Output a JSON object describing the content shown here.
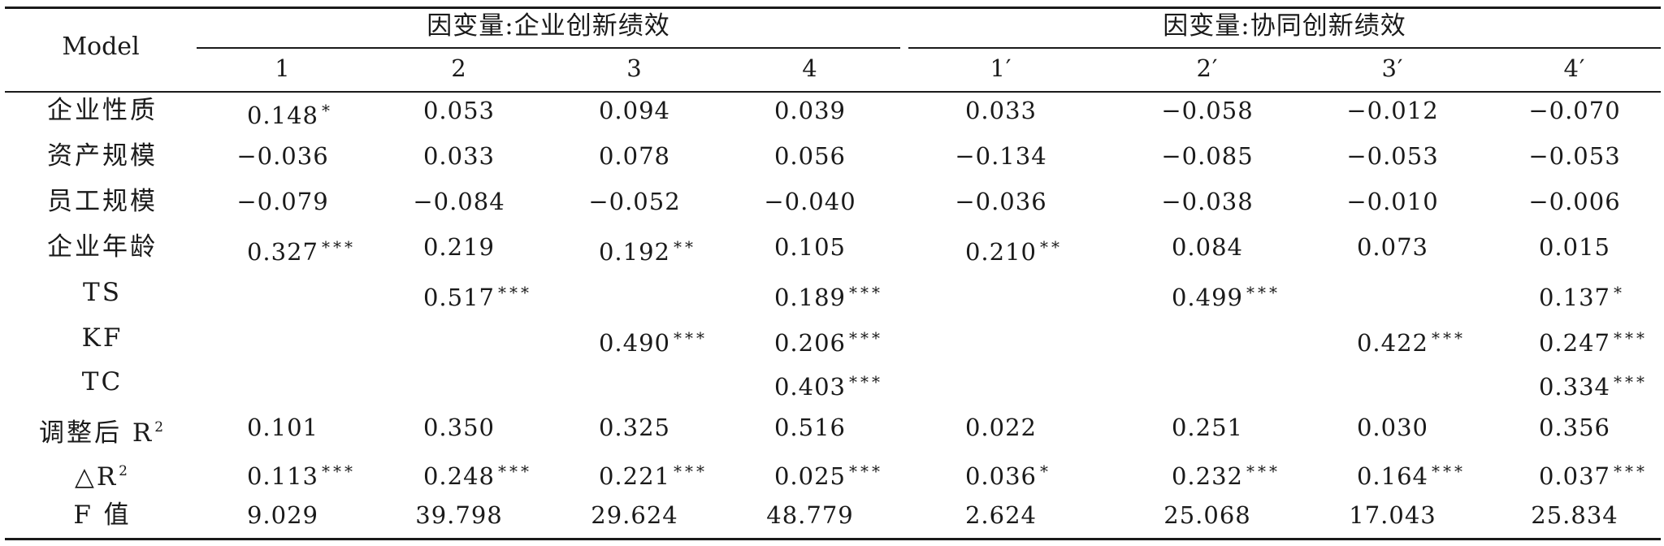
{
  "table": {
    "model_label": "Model",
    "group_headers": [
      "因变量:企业创新绩效",
      "因变量:协同创新绩效"
    ],
    "column_labels": [
      "1",
      "2",
      "3",
      "4",
      "1′",
      "2′",
      "3′",
      "4′"
    ],
    "rows": [
      {
        "label": "企业性质",
        "cells": [
          {
            "v": "0.148",
            "s": "*"
          },
          {
            "v": "0.053",
            "s": ""
          },
          {
            "v": "0.094",
            "s": ""
          },
          {
            "v": "0.039",
            "s": ""
          },
          {
            "v": "0.033",
            "s": ""
          },
          {
            "v": "−0.058",
            "s": ""
          },
          {
            "v": "−0.012",
            "s": ""
          },
          {
            "v": "−0.070",
            "s": ""
          }
        ]
      },
      {
        "label": "资产规模",
        "cells": [
          {
            "v": "−0.036",
            "s": ""
          },
          {
            "v": "0.033",
            "s": ""
          },
          {
            "v": "0.078",
            "s": ""
          },
          {
            "v": "0.056",
            "s": ""
          },
          {
            "v": "−0.134",
            "s": ""
          },
          {
            "v": "−0.085",
            "s": ""
          },
          {
            "v": "−0.053",
            "s": ""
          },
          {
            "v": "−0.053",
            "s": ""
          }
        ]
      },
      {
        "label": "员工规模",
        "cells": [
          {
            "v": "−0.079",
            "s": ""
          },
          {
            "v": "−0.084",
            "s": ""
          },
          {
            "v": "−0.052",
            "s": ""
          },
          {
            "v": "−0.040",
            "s": ""
          },
          {
            "v": "−0.036",
            "s": ""
          },
          {
            "v": "−0.038",
            "s": ""
          },
          {
            "v": "−0.010",
            "s": ""
          },
          {
            "v": "−0.006",
            "s": ""
          }
        ]
      },
      {
        "label": "企业年龄",
        "cells": [
          {
            "v": "0.327",
            "s": "***"
          },
          {
            "v": "0.219",
            "s": ""
          },
          {
            "v": "0.192",
            "s": "**"
          },
          {
            "v": "0.105",
            "s": ""
          },
          {
            "v": "0.210",
            "s": "**"
          },
          {
            "v": "0.084",
            "s": ""
          },
          {
            "v": "0.073",
            "s": ""
          },
          {
            "v": "0.015",
            "s": ""
          }
        ]
      },
      {
        "label": "TS",
        "cells": [
          {
            "v": "",
            "s": ""
          },
          {
            "v": "0.517",
            "s": "***"
          },
          {
            "v": "",
            "s": ""
          },
          {
            "v": "0.189",
            "s": "***"
          },
          {
            "v": "",
            "s": ""
          },
          {
            "v": "0.499",
            "s": "***"
          },
          {
            "v": "",
            "s": ""
          },
          {
            "v": "0.137",
            "s": "*"
          }
        ]
      },
      {
        "label": "KF",
        "cells": [
          {
            "v": "",
            "s": ""
          },
          {
            "v": "",
            "s": ""
          },
          {
            "v": "0.490",
            "s": "***"
          },
          {
            "v": "0.206",
            "s": "***"
          },
          {
            "v": "",
            "s": ""
          },
          {
            "v": "",
            "s": ""
          },
          {
            "v": "0.422",
            "s": "***"
          },
          {
            "v": "0.247",
            "s": "***"
          }
        ]
      },
      {
        "label": "TC",
        "cells": [
          {
            "v": "",
            "s": ""
          },
          {
            "v": "",
            "s": ""
          },
          {
            "v": "",
            "s": ""
          },
          {
            "v": "0.403",
            "s": "***"
          },
          {
            "v": "",
            "s": ""
          },
          {
            "v": "",
            "s": ""
          },
          {
            "v": "",
            "s": ""
          },
          {
            "v": "0.334",
            "s": "***"
          }
        ]
      },
      {
        "label": "调整后 R",
        "label_sup": "2",
        "cells": [
          {
            "v": "0.101",
            "s": ""
          },
          {
            "v": "0.350",
            "s": ""
          },
          {
            "v": "0.325",
            "s": ""
          },
          {
            "v": "0.516",
            "s": ""
          },
          {
            "v": "0.022",
            "s": ""
          },
          {
            "v": "0.251",
            "s": ""
          },
          {
            "v": "0.030",
            "s": ""
          },
          {
            "v": "0.356",
            "s": ""
          }
        ]
      },
      {
        "label": "△R",
        "label_sup": "2",
        "cells": [
          {
            "v": "0.113",
            "s": "***"
          },
          {
            "v": "0.248",
            "s": "***"
          },
          {
            "v": "0.221",
            "s": "***"
          },
          {
            "v": "0.025",
            "s": "***"
          },
          {
            "v": "0.036",
            "s": "*"
          },
          {
            "v": "0.232",
            "s": "***"
          },
          {
            "v": "0.164",
            "s": "***"
          },
          {
            "v": "0.037",
            "s": "***"
          }
        ]
      },
      {
        "label": "F 值",
        "cells": [
          {
            "v": "9.029",
            "s": ""
          },
          {
            "v": "39.798",
            "s": ""
          },
          {
            "v": "29.624",
            "s": ""
          },
          {
            "v": "48.779",
            "s": ""
          },
          {
            "v": "2.624",
            "s": ""
          },
          {
            "v": "25.068",
            "s": ""
          },
          {
            "v": "17.043",
            "s": ""
          },
          {
            "v": "25.834",
            "s": ""
          }
        ]
      }
    ]
  }
}
